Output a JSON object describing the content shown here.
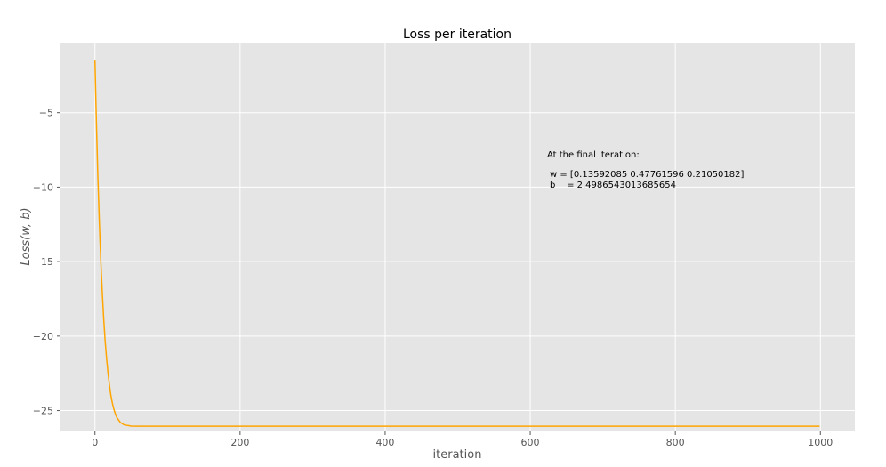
{
  "chart_data": {
    "type": "line",
    "title": "Loss per iteration",
    "xlabel": "iteration",
    "ylabel": "Loss(w, b)",
    "xlim": [
      -47.5,
      1047.5
    ],
    "ylim": [
      -26.4,
      -0.3
    ],
    "x_ticks": [
      0,
      200,
      400,
      600,
      800,
      1000
    ],
    "y_ticks": [
      -5,
      -10,
      -15,
      -20,
      -25
    ],
    "x_tick_labels": [
      "0",
      "200",
      "400",
      "600",
      "800",
      "1000"
    ],
    "y_tick_labels": [
      "−5",
      "−10",
      "−15",
      "−20",
      "−25"
    ],
    "grid": true,
    "background": "#e5e5e5",
    "line_color": "#ffa500",
    "series": [
      {
        "x": [
          0,
          2,
          4,
          6,
          8,
          10,
          12,
          14,
          16,
          18,
          20,
          22,
          24,
          26,
          28,
          30,
          35,
          40,
          45,
          50,
          60,
          80,
          100,
          150,
          200,
          300,
          400,
          500,
          600,
          700,
          800,
          900,
          999
        ],
        "y": [
          -1.5,
          -5.7,
          -9.3,
          -12.3,
          -14.9,
          -17.0,
          -18.8,
          -20.3,
          -21.5,
          -22.5,
          -23.3,
          -24.0,
          -24.5,
          -24.9,
          -25.2,
          -25.45,
          -25.8,
          -25.95,
          -26.0,
          -26.04,
          -26.05,
          -26.05,
          -26.05,
          -26.05,
          -26.05,
          -26.05,
          -26.05,
          -26.05,
          -26.05,
          -26.05,
          -26.05,
          -26.05,
          -26.05
        ]
      }
    ],
    "annotation": {
      "heading": "At the final iteration:",
      "w_line": "w = [0.13592085 0.47761596 0.21050182]",
      "b_line": "b    = 2.4986543013685654"
    }
  }
}
